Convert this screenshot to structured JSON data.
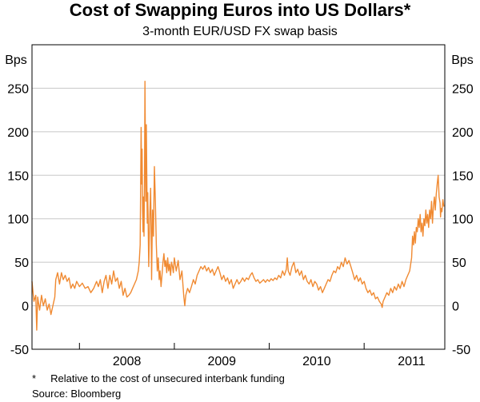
{
  "chart_data": {
    "type": "line",
    "title": "Cost of Swapping Euros into US Dollars*",
    "subtitle": "3-month EUR/USD FX swap basis",
    "ylabel_left": "Bps",
    "ylabel_right": "Bps",
    "ylim": [
      -50,
      300
    ],
    "yticks": [
      -50,
      0,
      50,
      100,
      150,
      200,
      250
    ],
    "ytick_labels": [
      "-50",
      "0",
      "50",
      "100",
      "150",
      "200",
      "250"
    ],
    "xlim": [
      2007.5,
      2011.85
    ],
    "xticks": [
      2008,
      2009,
      2010,
      2011
    ],
    "xtick_labels": [
      "2008",
      "2009",
      "2010",
      "2011"
    ],
    "grid": true,
    "series": [
      {
        "name": "3-month EUR/USD FX swap basis",
        "color": "#f08a32",
        "points": [
          [
            2007.5,
            28
          ],
          [
            2007.52,
            5
          ],
          [
            2007.54,
            12
          ],
          [
            2007.55,
            -28
          ],
          [
            2007.56,
            10
          ],
          [
            2007.58,
            -5
          ],
          [
            2007.6,
            12
          ],
          [
            2007.62,
            0
          ],
          [
            2007.64,
            8
          ],
          [
            2007.66,
            -5
          ],
          [
            2007.68,
            2
          ],
          [
            2007.7,
            -10
          ],
          [
            2007.72,
            0
          ],
          [
            2007.74,
            10
          ],
          [
            2007.75,
            30
          ],
          [
            2007.77,
            38
          ],
          [
            2007.79,
            25
          ],
          [
            2007.81,
            38
          ],
          [
            2007.83,
            30
          ],
          [
            2007.85,
            35
          ],
          [
            2007.87,
            28
          ],
          [
            2007.89,
            32
          ],
          [
            2007.91,
            20
          ],
          [
            2007.93,
            25
          ],
          [
            2007.95,
            20
          ],
          [
            2007.97,
            28
          ],
          [
            2008.0,
            22
          ],
          [
            2008.03,
            26
          ],
          [
            2008.06,
            20
          ],
          [
            2008.09,
            22
          ],
          [
            2008.12,
            15
          ],
          [
            2008.15,
            20
          ],
          [
            2008.18,
            28
          ],
          [
            2008.2,
            22
          ],
          [
            2008.22,
            30
          ],
          [
            2008.24,
            15
          ],
          [
            2008.26,
            28
          ],
          [
            2008.28,
            35
          ],
          [
            2008.3,
            20
          ],
          [
            2008.32,
            35
          ],
          [
            2008.34,
            25
          ],
          [
            2008.36,
            40
          ],
          [
            2008.38,
            28
          ],
          [
            2008.4,
            32
          ],
          [
            2008.42,
            20
          ],
          [
            2008.44,
            28
          ],
          [
            2008.46,
            12
          ],
          [
            2008.48,
            20
          ],
          [
            2008.5,
            10
          ],
          [
            2008.52,
            12
          ],
          [
            2008.54,
            15
          ],
          [
            2008.56,
            20
          ],
          [
            2008.58,
            25
          ],
          [
            2008.6,
            30
          ],
          [
            2008.62,
            40
          ],
          [
            2008.63,
            50
          ],
          [
            2008.64,
            70
          ],
          [
            2008.65,
            205
          ],
          [
            2008.655,
            140
          ],
          [
            2008.66,
            180
          ],
          [
            2008.665,
            110
          ],
          [
            2008.67,
            85
          ],
          [
            2008.675,
            125
          ],
          [
            2008.68,
            80
          ],
          [
            2008.685,
            140
          ],
          [
            2008.69,
            258
          ],
          [
            2008.695,
            175
          ],
          [
            2008.7,
            120
          ],
          [
            2008.705,
            208
          ],
          [
            2008.71,
            150
          ],
          [
            2008.715,
            95
          ],
          [
            2008.72,
            130
          ],
          [
            2008.73,
            45
          ],
          [
            2008.74,
            100
          ],
          [
            2008.75,
            135
          ],
          [
            2008.755,
            90
          ],
          [
            2008.76,
            30
          ],
          [
            2008.77,
            110
          ],
          [
            2008.78,
            80
          ],
          [
            2008.79,
            160
          ],
          [
            2008.8,
            120
          ],
          [
            2008.81,
            70
          ],
          [
            2008.82,
            40
          ],
          [
            2008.83,
            55
          ],
          [
            2008.84,
            30
          ],
          [
            2008.85,
            40
          ],
          [
            2008.86,
            22
          ],
          [
            2008.87,
            35
          ],
          [
            2008.88,
            50
          ],
          [
            2008.89,
            60
          ],
          [
            2008.9,
            45
          ],
          [
            2008.91,
            52
          ],
          [
            2008.92,
            38
          ],
          [
            2008.93,
            55
          ],
          [
            2008.94,
            40
          ],
          [
            2008.95,
            48
          ],
          [
            2008.96,
            35
          ],
          [
            2008.97,
            50
          ],
          [
            2008.98,
            45
          ],
          [
            2008.99,
            38
          ],
          [
            2009.0,
            55
          ],
          [
            2009.02,
            40
          ],
          [
            2009.04,
            52
          ],
          [
            2009.06,
            30
          ],
          [
            2009.08,
            40
          ],
          [
            2009.1,
            10
          ],
          [
            2009.11,
            0
          ],
          [
            2009.12,
            12
          ],
          [
            2009.14,
            20
          ],
          [
            2009.16,
            15
          ],
          [
            2009.18,
            22
          ],
          [
            2009.2,
            30
          ],
          [
            2009.22,
            25
          ],
          [
            2009.24,
            35
          ],
          [
            2009.26,
            40
          ],
          [
            2009.28,
            45
          ],
          [
            2009.3,
            42
          ],
          [
            2009.32,
            46
          ],
          [
            2009.34,
            40
          ],
          [
            2009.36,
            44
          ],
          [
            2009.38,
            38
          ],
          [
            2009.4,
            42
          ],
          [
            2009.42,
            35
          ],
          [
            2009.44,
            40
          ],
          [
            2009.46,
            45
          ],
          [
            2009.48,
            38
          ],
          [
            2009.5,
            30
          ],
          [
            2009.52,
            35
          ],
          [
            2009.54,
            28
          ],
          [
            2009.56,
            32
          ],
          [
            2009.58,
            25
          ],
          [
            2009.6,
            30
          ],
          [
            2009.62,
            20
          ],
          [
            2009.64,
            25
          ],
          [
            2009.66,
            30
          ],
          [
            2009.68,
            25
          ],
          [
            2009.7,
            28
          ],
          [
            2009.72,
            32
          ],
          [
            2009.74,
            28
          ],
          [
            2009.76,
            32
          ],
          [
            2009.78,
            30
          ],
          [
            2009.8,
            35
          ],
          [
            2009.82,
            38
          ],
          [
            2009.84,
            32
          ],
          [
            2009.86,
            28
          ],
          [
            2009.88,
            30
          ],
          [
            2009.9,
            26
          ],
          [
            2009.92,
            28
          ],
          [
            2009.94,
            30
          ],
          [
            2009.96,
            27
          ],
          [
            2009.98,
            30
          ],
          [
            2010.0,
            28
          ],
          [
            2010.02,
            31
          ],
          [
            2010.04,
            29
          ],
          [
            2010.06,
            32
          ],
          [
            2010.08,
            30
          ],
          [
            2010.1,
            35
          ],
          [
            2010.12,
            32
          ],
          [
            2010.14,
            40
          ],
          [
            2010.16,
            35
          ],
          [
            2010.18,
            42
          ],
          [
            2010.19,
            55
          ],
          [
            2010.2,
            40
          ],
          [
            2010.22,
            35
          ],
          [
            2010.24,
            45
          ],
          [
            2010.26,
            50
          ],
          [
            2010.28,
            38
          ],
          [
            2010.3,
            42
          ],
          [
            2010.32,
            35
          ],
          [
            2010.34,
            40
          ],
          [
            2010.36,
            30
          ],
          [
            2010.38,
            35
          ],
          [
            2010.4,
            28
          ],
          [
            2010.42,
            25
          ],
          [
            2010.44,
            30
          ],
          [
            2010.46,
            22
          ],
          [
            2010.48,
            28
          ],
          [
            2010.5,
            25
          ],
          [
            2010.52,
            18
          ],
          [
            2010.54,
            22
          ],
          [
            2010.56,
            15
          ],
          [
            2010.58,
            20
          ],
          [
            2010.6,
            25
          ],
          [
            2010.62,
            30
          ],
          [
            2010.64,
            28
          ],
          [
            2010.66,
            35
          ],
          [
            2010.68,
            40
          ],
          [
            2010.7,
            38
          ],
          [
            2010.72,
            45
          ],
          [
            2010.74,
            42
          ],
          [
            2010.76,
            50
          ],
          [
            2010.78,
            45
          ],
          [
            2010.8,
            55
          ],
          [
            2010.82,
            48
          ],
          [
            2010.84,
            52
          ],
          [
            2010.86,
            45
          ],
          [
            2010.88,
            38
          ],
          [
            2010.9,
            30
          ],
          [
            2010.92,
            35
          ],
          [
            2010.94,
            28
          ],
          [
            2010.96,
            32
          ],
          [
            2010.98,
            25
          ],
          [
            2011.0,
            28
          ],
          [
            2011.02,
            20
          ],
          [
            2011.04,
            15
          ],
          [
            2011.06,
            18
          ],
          [
            2011.08,
            12
          ],
          [
            2011.1,
            15
          ],
          [
            2011.12,
            8
          ],
          [
            2011.14,
            10
          ],
          [
            2011.16,
            5
          ],
          [
            2011.18,
            2
          ],
          [
            2011.19,
            -2
          ],
          [
            2011.2,
            5
          ],
          [
            2011.22,
            10
          ],
          [
            2011.24,
            15
          ],
          [
            2011.26,
            12
          ],
          [
            2011.28,
            20
          ],
          [
            2011.3,
            15
          ],
          [
            2011.32,
            22
          ],
          [
            2011.34,
            18
          ],
          [
            2011.36,
            25
          ],
          [
            2011.38,
            20
          ],
          [
            2011.4,
            28
          ],
          [
            2011.42,
            22
          ],
          [
            2011.44,
            30
          ],
          [
            2011.46,
            35
          ],
          [
            2011.48,
            40
          ],
          [
            2011.5,
            55
          ],
          [
            2011.51,
            80
          ],
          [
            2011.52,
            70
          ],
          [
            2011.53,
            85
          ],
          [
            2011.54,
            72
          ],
          [
            2011.55,
            90
          ],
          [
            2011.56,
            85
          ],
          [
            2011.57,
            100
          ],
          [
            2011.58,
            90
          ],
          [
            2011.59,
            105
          ],
          [
            2011.6,
            85
          ],
          [
            2011.61,
            95
          ],
          [
            2011.62,
            80
          ],
          [
            2011.63,
            100
          ],
          [
            2011.64,
            92
          ],
          [
            2011.65,
            110
          ],
          [
            2011.66,
            95
          ],
          [
            2011.67,
            105
          ],
          [
            2011.68,
            90
          ],
          [
            2011.69,
            110
          ],
          [
            2011.7,
            100
          ],
          [
            2011.71,
            120
          ],
          [
            2011.72,
            95
          ],
          [
            2011.73,
            115
          ],
          [
            2011.74,
            125
          ],
          [
            2011.75,
            110
          ],
          [
            2011.76,
            128
          ],
          [
            2011.77,
            140
          ],
          [
            2011.78,
            150
          ],
          [
            2011.79,
            125
          ],
          [
            2011.8,
            118
          ],
          [
            2011.805,
            102
          ],
          [
            2011.81,
            112
          ],
          [
            2011.82,
            108
          ],
          [
            2011.83,
            122
          ],
          [
            2011.84,
            114
          ]
        ]
      }
    ]
  },
  "footnote": "*     Relative to the cost of unsecured interbank funding",
  "source": "Source: Bloomberg"
}
